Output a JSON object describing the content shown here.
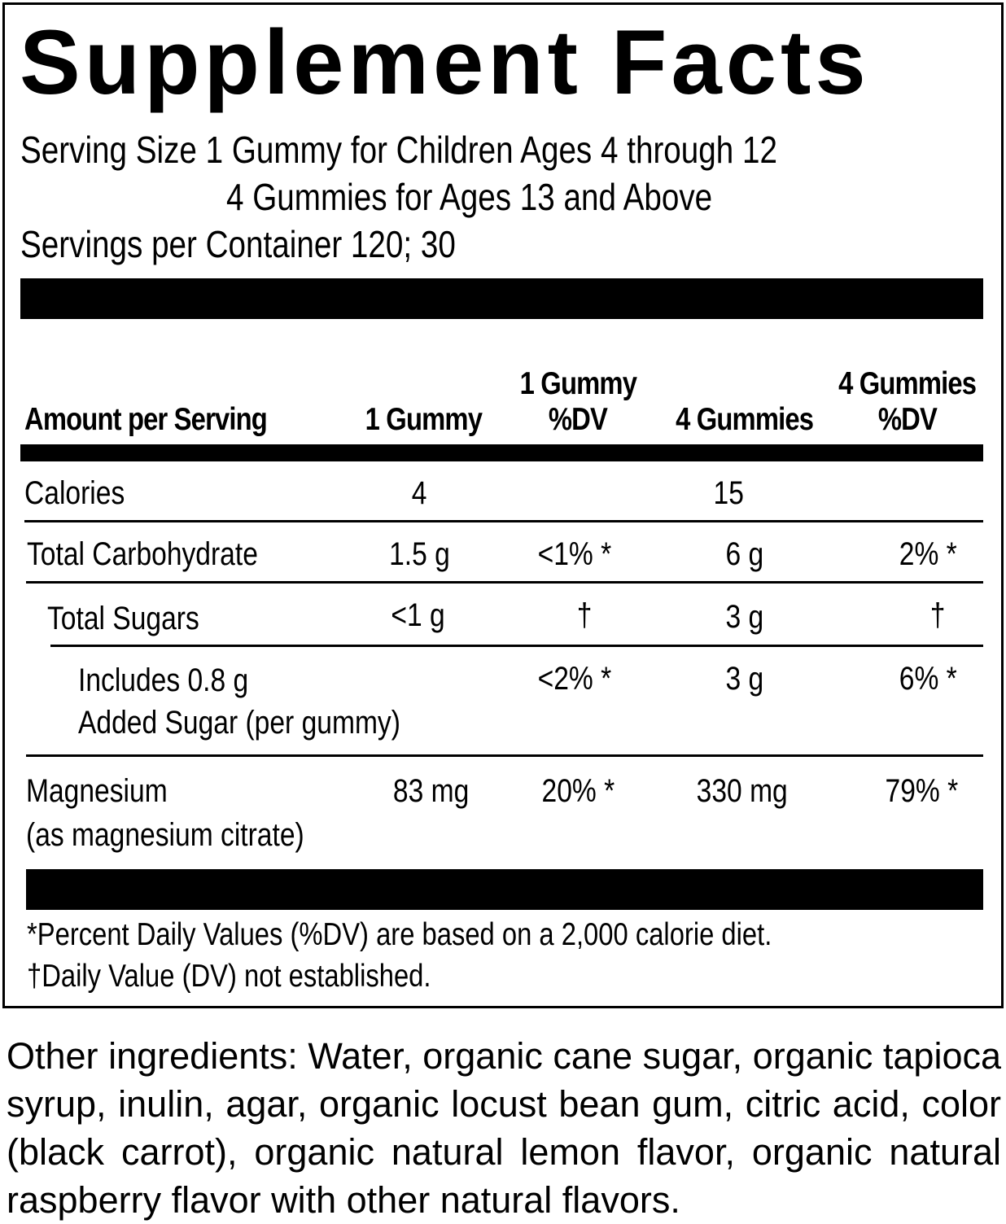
{
  "title": "Supplement Facts",
  "serving": {
    "line1": "Serving Size 1 Gummy for Children Ages 4 through 12",
    "line2": "4 Gummies for Ages 13 and Above",
    "line3": "Servings per Container 120; 30"
  },
  "headers": {
    "amount": "Amount per Serving",
    "col1": "1 Gummy",
    "col2a": "1 Gummy",
    "col2b": "%DV",
    "col3": "4 Gummies",
    "col4a": "4 Gummies",
    "col4b": "%DV"
  },
  "rows": [
    {
      "label": "Calories",
      "g1": "4",
      "dv1": "",
      "g4": "15",
      "dv4": ""
    },
    {
      "label": "Total Carbohydrate",
      "g1": "1.5 g",
      "dv1": "<1% *",
      "g4": "6 g",
      "dv4": "2% *"
    },
    {
      "label": "Total Sugars",
      "g1": "<1 g",
      "dv1": "†",
      "g4": "3 g",
      "dv4": "†"
    },
    {
      "label": "Includes 0.8 g",
      "label2": "Added Sugar (per gummy)",
      "g1": "",
      "dv1": "<2% *",
      "g4": "3 g",
      "dv4": "6% *"
    },
    {
      "label": "Magnesium",
      "label2": "(as magnesium citrate)",
      "g1": "83 mg",
      "dv1": "20% *",
      "g4": "330 mg",
      "dv4": "79% *"
    }
  ],
  "footnotes": [
    "*Percent Daily Values (%DV) are based on a 2,000 calorie diet.",
    "†Daily Value (DV) not established."
  ],
  "ingredients": {
    "lines": [
      "Other ingredients:  Water, organic cane sugar, organic tapioca",
      "syrup, inulin, agar, organic locust bean gum, citric acid, color",
      "(black carrot), organic natural lemon flavor, organic natural",
      "raspberry flavor with other natural flavors."
    ]
  }
}
